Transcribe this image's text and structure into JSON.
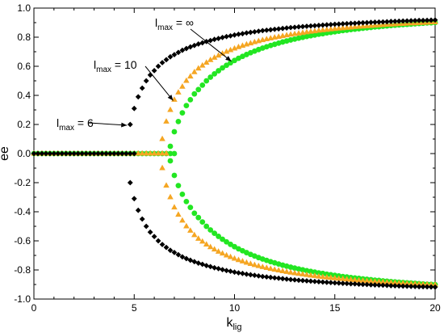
{
  "chart_data": {
    "type": "scatter",
    "xlabel": {
      "main": "k",
      "sub": "lig"
    },
    "ylabel": "ee",
    "xlim": [
      0,
      20
    ],
    "ylim": [
      -1.0,
      1.0
    ],
    "xticks": [
      0,
      5,
      10,
      15,
      20
    ],
    "yticks": [
      -1.0,
      -0.8,
      -0.6,
      -0.4,
      -0.2,
      0.0,
      0.2,
      0.4,
      0.6,
      0.8,
      1.0
    ],
    "xtick_labels": [
      "0",
      "5",
      "10",
      "15",
      "20"
    ],
    "ytick_labels": [
      "-1.0",
      "-0.8",
      "-0.6",
      "-0.4",
      "-0.2",
      "0.0",
      "0.2",
      "0.4",
      "0.6",
      "0.8",
      "1.0"
    ],
    "grid": false,
    "series": [
      {
        "name": "l_max = 6",
        "marker": "diamond",
        "color": "#000000",
        "bifurcation_k": 4.8,
        "x_step": 0.2,
        "points_positive": [
          [
            4.8,
            0.2
          ],
          [
            5.0,
            0.31
          ],
          [
            5.2,
            0.39
          ],
          [
            5.4,
            0.45
          ],
          [
            5.6,
            0.5
          ],
          [
            5.8,
            0.54
          ],
          [
            6.0,
            0.57
          ],
          [
            6.2,
            0.6
          ],
          [
            6.4,
            0.625
          ],
          [
            6.6,
            0.645
          ],
          [
            6.8,
            0.665
          ],
          [
            7.0,
            0.68
          ],
          [
            7.2,
            0.695
          ],
          [
            7.4,
            0.71
          ],
          [
            7.6,
            0.722
          ],
          [
            7.8,
            0.733
          ],
          [
            8.0,
            0.743
          ],
          [
            8.2,
            0.753
          ],
          [
            8.4,
            0.761
          ],
          [
            8.6,
            0.77
          ],
          [
            8.8,
            0.777
          ],
          [
            9.0,
            0.785
          ],
          [
            9.2,
            0.791
          ],
          [
            9.4,
            0.798
          ],
          [
            9.6,
            0.804
          ],
          [
            9.8,
            0.809
          ],
          [
            10.0,
            0.815
          ],
          [
            10.2,
            0.82
          ],
          [
            10.4,
            0.824
          ],
          [
            10.6,
            0.829
          ],
          [
            10.8,
            0.833
          ],
          [
            11.0,
            0.837
          ],
          [
            11.2,
            0.841
          ],
          [
            11.4,
            0.845
          ],
          [
            11.6,
            0.848
          ],
          [
            11.8,
            0.851
          ],
          [
            12.0,
            0.854
          ],
          [
            12.2,
            0.857
          ],
          [
            12.4,
            0.86
          ],
          [
            12.6,
            0.863
          ],
          [
            12.8,
            0.866
          ],
          [
            13.0,
            0.868
          ],
          [
            13.2,
            0.871
          ],
          [
            13.4,
            0.873
          ],
          [
            13.6,
            0.875
          ],
          [
            13.8,
            0.877
          ],
          [
            14.0,
            0.879
          ],
          [
            14.2,
            0.881
          ],
          [
            14.4,
            0.883
          ],
          [
            14.6,
            0.885
          ],
          [
            14.8,
            0.887
          ],
          [
            15.0,
            0.889
          ],
          [
            15.2,
            0.89
          ],
          [
            15.4,
            0.892
          ],
          [
            15.6,
            0.893
          ],
          [
            15.8,
            0.895
          ],
          [
            16.0,
            0.896
          ],
          [
            16.2,
            0.898
          ],
          [
            16.4,
            0.899
          ],
          [
            16.6,
            0.9
          ],
          [
            16.8,
            0.902
          ],
          [
            17.0,
            0.903
          ],
          [
            17.2,
            0.904
          ],
          [
            17.4,
            0.905
          ],
          [
            17.6,
            0.906
          ],
          [
            17.8,
            0.908
          ],
          [
            18.0,
            0.909
          ],
          [
            18.2,
            0.91
          ],
          [
            18.4,
            0.911
          ],
          [
            18.6,
            0.912
          ],
          [
            18.8,
            0.913
          ],
          [
            19.0,
            0.914
          ],
          [
            19.2,
            0.915
          ],
          [
            19.4,
            0.915
          ],
          [
            19.6,
            0.916
          ],
          [
            19.8,
            0.917
          ],
          [
            20.0,
            0.918
          ]
        ],
        "negative_branch": "mirror of points_positive"
      },
      {
        "name": "l_max = 10",
        "marker": "triangle",
        "color": "#F5A623",
        "bifurcation_k": 6.4,
        "x_step": 0.2,
        "points_positive": [
          [
            6.4,
            0.1
          ],
          [
            6.6,
            0.22
          ],
          [
            6.8,
            0.3
          ],
          [
            7.0,
            0.37
          ],
          [
            7.2,
            0.42
          ],
          [
            7.4,
            0.46
          ],
          [
            7.6,
            0.5
          ],
          [
            7.8,
            0.53
          ],
          [
            8.0,
            0.56
          ],
          [
            8.2,
            0.585
          ],
          [
            8.4,
            0.605
          ],
          [
            8.6,
            0.625
          ],
          [
            8.8,
            0.643
          ],
          [
            9.0,
            0.659
          ],
          [
            9.2,
            0.674
          ],
          [
            9.4,
            0.687
          ],
          [
            9.6,
            0.7
          ],
          [
            9.8,
            0.711
          ],
          [
            10.0,
            0.722
          ],
          [
            10.2,
            0.732
          ],
          [
            10.4,
            0.741
          ],
          [
            10.6,
            0.75
          ],
          [
            10.8,
            0.758
          ],
          [
            11.0,
            0.766
          ],
          [
            11.2,
            0.773
          ],
          [
            11.4,
            0.78
          ],
          [
            11.6,
            0.786
          ],
          [
            11.8,
            0.792
          ],
          [
            12.0,
            0.798
          ],
          [
            12.2,
            0.803
          ],
          [
            12.4,
            0.808
          ],
          [
            12.6,
            0.813
          ],
          [
            12.8,
            0.818
          ],
          [
            13.0,
            0.822
          ],
          [
            13.2,
            0.826
          ],
          [
            13.4,
            0.83
          ],
          [
            13.6,
            0.834
          ],
          [
            13.8,
            0.838
          ],
          [
            14.0,
            0.841
          ],
          [
            14.2,
            0.845
          ],
          [
            14.4,
            0.848
          ],
          [
            14.6,
            0.851
          ],
          [
            14.8,
            0.854
          ],
          [
            15.0,
            0.857
          ],
          [
            15.2,
            0.86
          ],
          [
            15.4,
            0.862
          ],
          [
            15.6,
            0.865
          ],
          [
            15.8,
            0.867
          ],
          [
            16.0,
            0.87
          ],
          [
            16.2,
            0.872
          ],
          [
            16.4,
            0.874
          ],
          [
            16.6,
            0.876
          ],
          [
            16.8,
            0.878
          ],
          [
            17.0,
            0.88
          ],
          [
            17.2,
            0.882
          ],
          [
            17.4,
            0.884
          ],
          [
            17.6,
            0.886
          ],
          [
            17.8,
            0.887
          ],
          [
            18.0,
            0.889
          ],
          [
            18.2,
            0.891
          ],
          [
            18.4,
            0.892
          ],
          [
            18.6,
            0.894
          ],
          [
            18.8,
            0.895
          ],
          [
            19.0,
            0.896
          ],
          [
            19.2,
            0.898
          ],
          [
            19.4,
            0.899
          ],
          [
            19.6,
            0.9
          ],
          [
            19.8,
            0.902
          ],
          [
            20.0,
            0.903
          ]
        ],
        "negative_branch": "mirror of points_positive"
      },
      {
        "name": "l_max = ∞",
        "marker": "circle",
        "color": "#22E622",
        "bifurcation_k": 6.8,
        "x_step": 0.2,
        "points_positive": [
          [
            6.8,
            0.05
          ],
          [
            7.0,
            0.15
          ],
          [
            7.2,
            0.22
          ],
          [
            7.4,
            0.28
          ],
          [
            7.6,
            0.33
          ],
          [
            7.8,
            0.37
          ],
          [
            8.0,
            0.41
          ],
          [
            8.2,
            0.44
          ],
          [
            8.4,
            0.47
          ],
          [
            8.6,
            0.5
          ],
          [
            8.8,
            0.525
          ],
          [
            9.0,
            0.548
          ],
          [
            9.2,
            0.569
          ],
          [
            9.4,
            0.589
          ],
          [
            9.6,
            0.607
          ],
          [
            9.8,
            0.624
          ],
          [
            10.0,
            0.64
          ],
          [
            10.2,
            0.655
          ],
          [
            10.4,
            0.668
          ],
          [
            10.6,
            0.681
          ],
          [
            10.8,
            0.693
          ],
          [
            11.0,
            0.704
          ],
          [
            11.2,
            0.715
          ],
          [
            11.4,
            0.725
          ],
          [
            11.6,
            0.734
          ],
          [
            11.8,
            0.743
          ],
          [
            12.0,
            0.751
          ],
          [
            12.2,
            0.759
          ],
          [
            12.4,
            0.767
          ],
          [
            12.6,
            0.774
          ],
          [
            12.8,
            0.781
          ],
          [
            13.0,
            0.787
          ],
          [
            13.2,
            0.793
          ],
          [
            13.4,
            0.799
          ],
          [
            13.6,
            0.805
          ],
          [
            13.8,
            0.81
          ],
          [
            14.0,
            0.815
          ],
          [
            14.2,
            0.82
          ],
          [
            14.4,
            0.824
          ],
          [
            14.6,
            0.829
          ],
          [
            14.8,
            0.833
          ],
          [
            15.0,
            0.837
          ],
          [
            15.2,
            0.841
          ],
          [
            15.4,
            0.845
          ],
          [
            15.6,
            0.848
          ],
          [
            15.8,
            0.852
          ],
          [
            16.0,
            0.855
          ],
          [
            16.2,
            0.858
          ],
          [
            16.4,
            0.861
          ],
          [
            16.6,
            0.864
          ],
          [
            16.8,
            0.867
          ],
          [
            17.0,
            0.87
          ],
          [
            17.2,
            0.872
          ],
          [
            17.4,
            0.875
          ],
          [
            17.6,
            0.877
          ],
          [
            17.8,
            0.88
          ],
          [
            18.0,
            0.882
          ],
          [
            18.2,
            0.884
          ],
          [
            18.4,
            0.886
          ],
          [
            18.6,
            0.888
          ],
          [
            18.8,
            0.89
          ],
          [
            19.0,
            0.892
          ],
          [
            19.2,
            0.894
          ],
          [
            19.4,
            0.896
          ],
          [
            19.6,
            0.898
          ],
          [
            19.8,
            0.899
          ],
          [
            20.0,
            0.901
          ]
        ],
        "negative_branch": "mirror of points_positive"
      }
    ],
    "annotations": [
      {
        "main": "l",
        "sub": "max",
        "suffix": " = 6",
        "target": [
          4.8,
          0.2
        ]
      },
      {
        "main": "l",
        "sub": "max",
        "suffix": " = 10",
        "target": [
          7.1,
          0.37
        ]
      },
      {
        "main": "l",
        "sub": "max",
        "suffix": " = ∞",
        "target": [
          10.0,
          0.64
        ]
      }
    ]
  }
}
